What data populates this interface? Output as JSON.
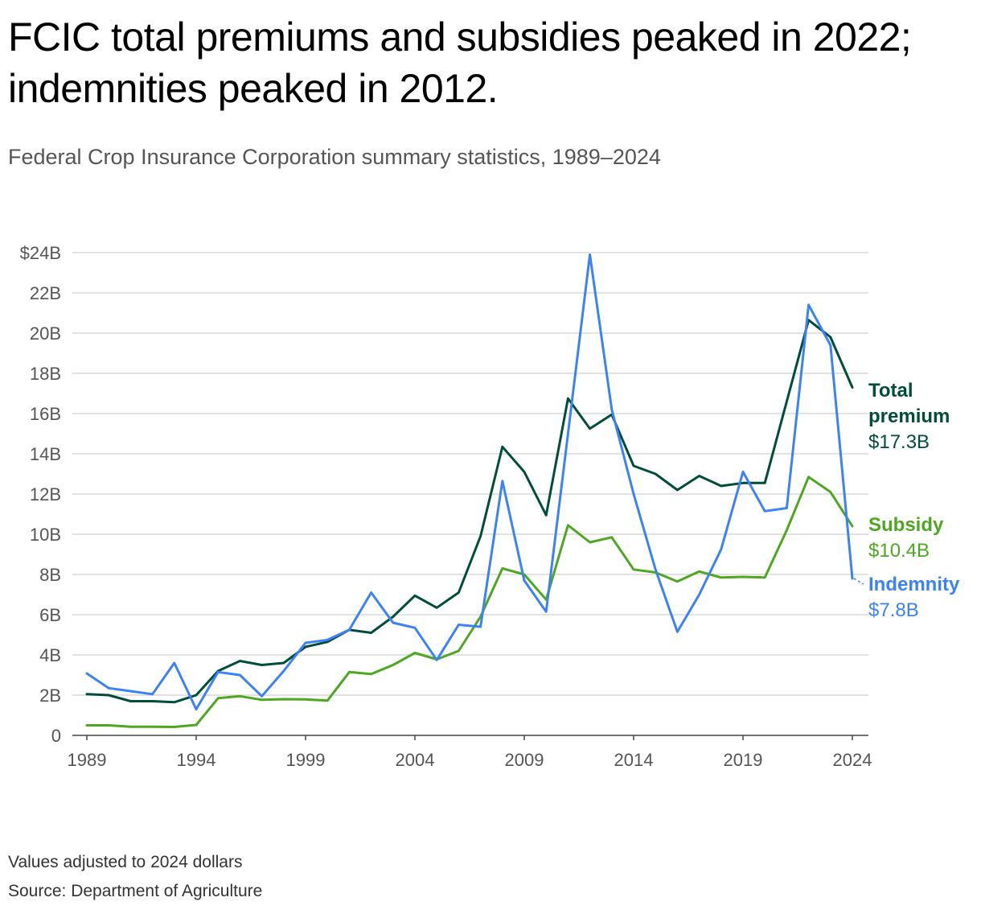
{
  "title": "FCIC total premiums and subsidies peaked in 2022; indemnities peaked in 2012.",
  "subtitle": "Federal Crop Insurance Corporation summary statistics, 1989–2024",
  "notes": {
    "adjustment": "Values adjusted to 2024 dollars",
    "source": "Source: Department of Agriculture"
  },
  "chart_data": {
    "type": "line",
    "x": [
      1989,
      1990,
      1991,
      1992,
      1993,
      1994,
      1995,
      1996,
      1997,
      1998,
      1999,
      2000,
      2001,
      2002,
      2003,
      2004,
      2005,
      2006,
      2007,
      2008,
      2009,
      2010,
      2011,
      2012,
      2013,
      2014,
      2015,
      2016,
      2017,
      2018,
      2019,
      2020,
      2021,
      2022,
      2023,
      2024
    ],
    "ylim": [
      0,
      24
    ],
    "yticks": [
      {
        "value": 0,
        "label": "0"
      },
      {
        "value": 2,
        "label": "2B"
      },
      {
        "value": 4,
        "label": "4B"
      },
      {
        "value": 6,
        "label": "6B"
      },
      {
        "value": 8,
        "label": "8B"
      },
      {
        "value": 10,
        "label": "10B"
      },
      {
        "value": 12,
        "label": "12B"
      },
      {
        "value": 14,
        "label": "14B"
      },
      {
        "value": 16,
        "label": "16B"
      },
      {
        "value": 18,
        "label": "18B"
      },
      {
        "value": 20,
        "label": "20B"
      },
      {
        "value": 22,
        "label": "22B"
      },
      {
        "value": 24,
        "label": "$24B"
      }
    ],
    "xticks": [
      1989,
      1994,
      1999,
      2004,
      2009,
      2014,
      2019,
      2024
    ],
    "grid": true,
    "series": [
      {
        "name": "Total premium",
        "end_label": [
          "Total",
          "premium",
          "$17.3B"
        ],
        "color": "#004d3a",
        "values": [
          2.05,
          2.0,
          1.7,
          1.7,
          1.65,
          2.0,
          3.2,
          3.7,
          3.5,
          3.6,
          4.4,
          4.65,
          5.25,
          5.1,
          5.9,
          6.95,
          6.35,
          7.1,
          9.9,
          14.35,
          13.1,
          10.95,
          16.75,
          15.25,
          15.95,
          13.4,
          13.0,
          12.2,
          12.9,
          12.4,
          12.55,
          12.55,
          16.6,
          20.65,
          19.8,
          17.3
        ]
      },
      {
        "name": "Subsidy",
        "end_label": [
          "Subsidy",
          "$10.4B"
        ],
        "color": "#4ea721",
        "values": [
          0.5,
          0.5,
          0.43,
          0.43,
          0.42,
          0.52,
          1.85,
          1.95,
          1.77,
          1.8,
          1.79,
          1.73,
          3.15,
          3.05,
          3.5,
          4.1,
          3.78,
          4.2,
          5.9,
          8.3,
          8.0,
          6.75,
          10.45,
          9.6,
          9.85,
          8.25,
          8.1,
          7.65,
          8.15,
          7.85,
          7.88,
          7.85,
          10.2,
          12.85,
          12.1,
          10.4
        ]
      },
      {
        "name": "Indemnity",
        "end_label": [
          "Indemnity",
          "$7.8B"
        ],
        "color": "#3b82f6",
        "values": [
          3.08,
          2.35,
          2.2,
          2.05,
          3.6,
          1.3,
          3.15,
          3.0,
          1.95,
          3.2,
          4.6,
          4.75,
          5.25,
          7.1,
          5.6,
          5.35,
          3.75,
          5.5,
          5.4,
          12.65,
          7.7,
          6.15,
          15.0,
          23.9,
          16.2,
          12.0,
          8.25,
          5.15,
          7.0,
          9.25,
          13.1,
          11.15,
          11.3,
          21.4,
          19.4,
          7.8
        ]
      }
    ]
  }
}
